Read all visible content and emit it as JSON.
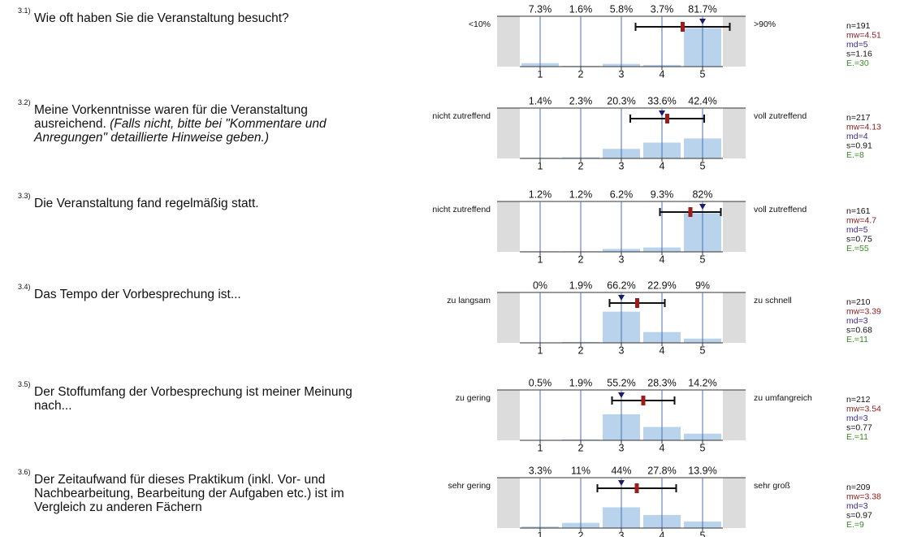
{
  "scale": [
    1,
    2,
    3,
    4,
    5
  ],
  "items": [
    {
      "number": "3.1)",
      "question": "Wie oft haben Sie die Veranstaltung besucht?",
      "left_label": "<10%",
      "right_label": ">90%",
      "values": [
        7.3,
        1.6,
        5.8,
        3.7,
        81.7
      ],
      "value_labels": [
        "7.3%",
        "1.6%",
        "5.8%",
        "3.7%",
        "81.7%"
      ],
      "stats": {
        "n": {
          "value": 191,
          "label": "n=191"
        },
        "mw": {
          "value": 4.51,
          "label": "mw=4.51"
        },
        "md": {
          "value": 5,
          "label": "md=5"
        },
        "s": {
          "value": 1.16,
          "label": "s=1.16"
        },
        "e": {
          "value": 30,
          "label": "E.=30"
        }
      }
    },
    {
      "number": "3.2)",
      "question": "Meine Vorkenntnisse waren für die Veranstaltung ausreichend.",
      "question_note": "(Falls nicht, bitte bei \"Kommentare und Anregungen\" detaillierte Hinweise geben.)",
      "left_label": "nicht zutreffend",
      "right_label": "voll zutreffend",
      "values": [
        1.4,
        2.3,
        20.3,
        33.6,
        42.4
      ],
      "value_labels": [
        "1.4%",
        "2.3%",
        "20.3%",
        "33.6%",
        "42.4%"
      ],
      "stats": {
        "n": {
          "value": 217,
          "label": "n=217"
        },
        "mw": {
          "value": 4.13,
          "label": "mw=4.13"
        },
        "md": {
          "value": 4,
          "label": "md=4"
        },
        "s": {
          "value": 0.91,
          "label": "s=0.91"
        },
        "e": {
          "value": 8,
          "label": "E.=8"
        }
      }
    },
    {
      "number": "3.3)",
      "question": "Die Veranstaltung fand regelmäßig statt.",
      "left_label": "nicht zutreffend",
      "right_label": "voll zutreffend",
      "values": [
        1.2,
        1.2,
        6.2,
        9.3,
        82
      ],
      "value_labels": [
        "1.2%",
        "1.2%",
        "6.2%",
        "9.3%",
        "82%"
      ],
      "stats": {
        "n": {
          "value": 161,
          "label": "n=161"
        },
        "mw": {
          "value": 4.7,
          "label": "mw=4.7"
        },
        "md": {
          "value": 5,
          "label": "md=5"
        },
        "s": {
          "value": 0.75,
          "label": "s=0.75"
        },
        "e": {
          "value": 55,
          "label": "E.=55"
        }
      }
    },
    {
      "number": "3.4)",
      "question": "Das Tempo der Vorbesprechung ist...",
      "left_label": "zu langsam",
      "right_label": "zu schnell",
      "values": [
        0,
        1.9,
        66.2,
        22.9,
        9
      ],
      "value_labels": [
        "0%",
        "1.9%",
        "66.2%",
        "22.9%",
        "9%"
      ],
      "stats": {
        "n": {
          "value": 210,
          "label": "n=210"
        },
        "mw": {
          "value": 3.39,
          "label": "mw=3.39"
        },
        "md": {
          "value": 3,
          "label": "md=3"
        },
        "s": {
          "value": 0.68,
          "label": "s=0.68"
        },
        "e": {
          "value": 11,
          "label": "E.=11"
        }
      }
    },
    {
      "number": "3.5)",
      "question": "Der Stoffumfang der Vorbesprechung ist meiner Meinung nach...",
      "left_label": "zu gering",
      "right_label": "zu umfangreich",
      "values": [
        0.5,
        1.9,
        55.2,
        28.3,
        14.2
      ],
      "value_labels": [
        "0.5%",
        "1.9%",
        "55.2%",
        "28.3%",
        "14.2%"
      ],
      "stats": {
        "n": {
          "value": 212,
          "label": "n=212"
        },
        "mw": {
          "value": 3.54,
          "label": "mw=3.54"
        },
        "md": {
          "value": 3,
          "label": "md=3"
        },
        "s": {
          "value": 0.77,
          "label": "s=0.77"
        },
        "e": {
          "value": 11,
          "label": "E.=11"
        }
      }
    },
    {
      "number": "3.6)",
      "question": "Der Zeitaufwand für dieses Praktikum (inkl. Vor- und Nachbearbeitung, Bearbeitung der Aufgaben etc.) ist im Vergleich zu anderen Fächern",
      "left_label": "sehr gering",
      "right_label": "sehr groß",
      "values": [
        3.3,
        11,
        44,
        27.8,
        13.9
      ],
      "value_labels": [
        "3.3%",
        "11%",
        "44%",
        "27.8%",
        "13.9%"
      ],
      "stats": {
        "n": {
          "value": 209,
          "label": "n=209"
        },
        "mw": {
          "value": 3.38,
          "label": "mw=3.38"
        },
        "md": {
          "value": 3,
          "label": "md=3"
        },
        "s": {
          "value": 0.97,
          "label": "s=0.97"
        },
        "e": {
          "value": 9,
          "label": "E.=9"
        }
      }
    }
  ]
}
